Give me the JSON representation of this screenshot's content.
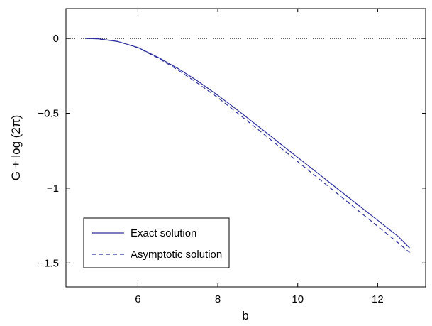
{
  "chart_data": {
    "type": "line",
    "title": "",
    "xlabel": "b",
    "ylabel": "G + log (2π)",
    "xlim": [
      4.2,
      13.2
    ],
    "ylim": [
      -1.66,
      0.2
    ],
    "xticks": [
      6,
      8,
      10,
      12
    ],
    "xtick_labels": [
      "6",
      "8",
      "10",
      "12"
    ],
    "yticks": [
      0,
      -0.5,
      -1,
      -1.5
    ],
    "ytick_labels": [
      "0",
      "−0.5",
      "−1",
      "−1.5"
    ],
    "grid": false,
    "reference_line": {
      "y": 0,
      "style": "dotted"
    },
    "legend": {
      "placement": "bottom-left"
    },
    "colors": {
      "series": "#2b2f9e"
    },
    "series": [
      {
        "name": "Exact solution",
        "style": "solid",
        "x": [
          4.7,
          5.0,
          5.5,
          6.0,
          6.5,
          7.0,
          7.5,
          8.0,
          8.5,
          9.0,
          9.5,
          10.0,
          10.5,
          11.0,
          11.5,
          12.0,
          12.5,
          12.8
        ],
        "y": [
          0.0,
          -0.002,
          -0.02,
          -0.06,
          -0.125,
          -0.2,
          -0.285,
          -0.38,
          -0.48,
          -0.585,
          -0.69,
          -0.795,
          -0.9,
          -1.005,
          -1.11,
          -1.215,
          -1.32,
          -1.4
        ]
      },
      {
        "name": "Asymptotic solution",
        "style": "dashed",
        "x": [
          4.7,
          5.0,
          5.5,
          6.0,
          6.5,
          7.0,
          7.5,
          8.0,
          8.5,
          9.0,
          9.5,
          10.0,
          10.5,
          11.0,
          11.5,
          12.0,
          12.5,
          12.8
        ],
        "y": [
          0.0,
          -0.002,
          -0.02,
          -0.062,
          -0.13,
          -0.21,
          -0.3,
          -0.395,
          -0.5,
          -0.607,
          -0.715,
          -0.823,
          -0.931,
          -1.039,
          -1.147,
          -1.255,
          -1.363,
          -1.43
        ]
      }
    ]
  }
}
